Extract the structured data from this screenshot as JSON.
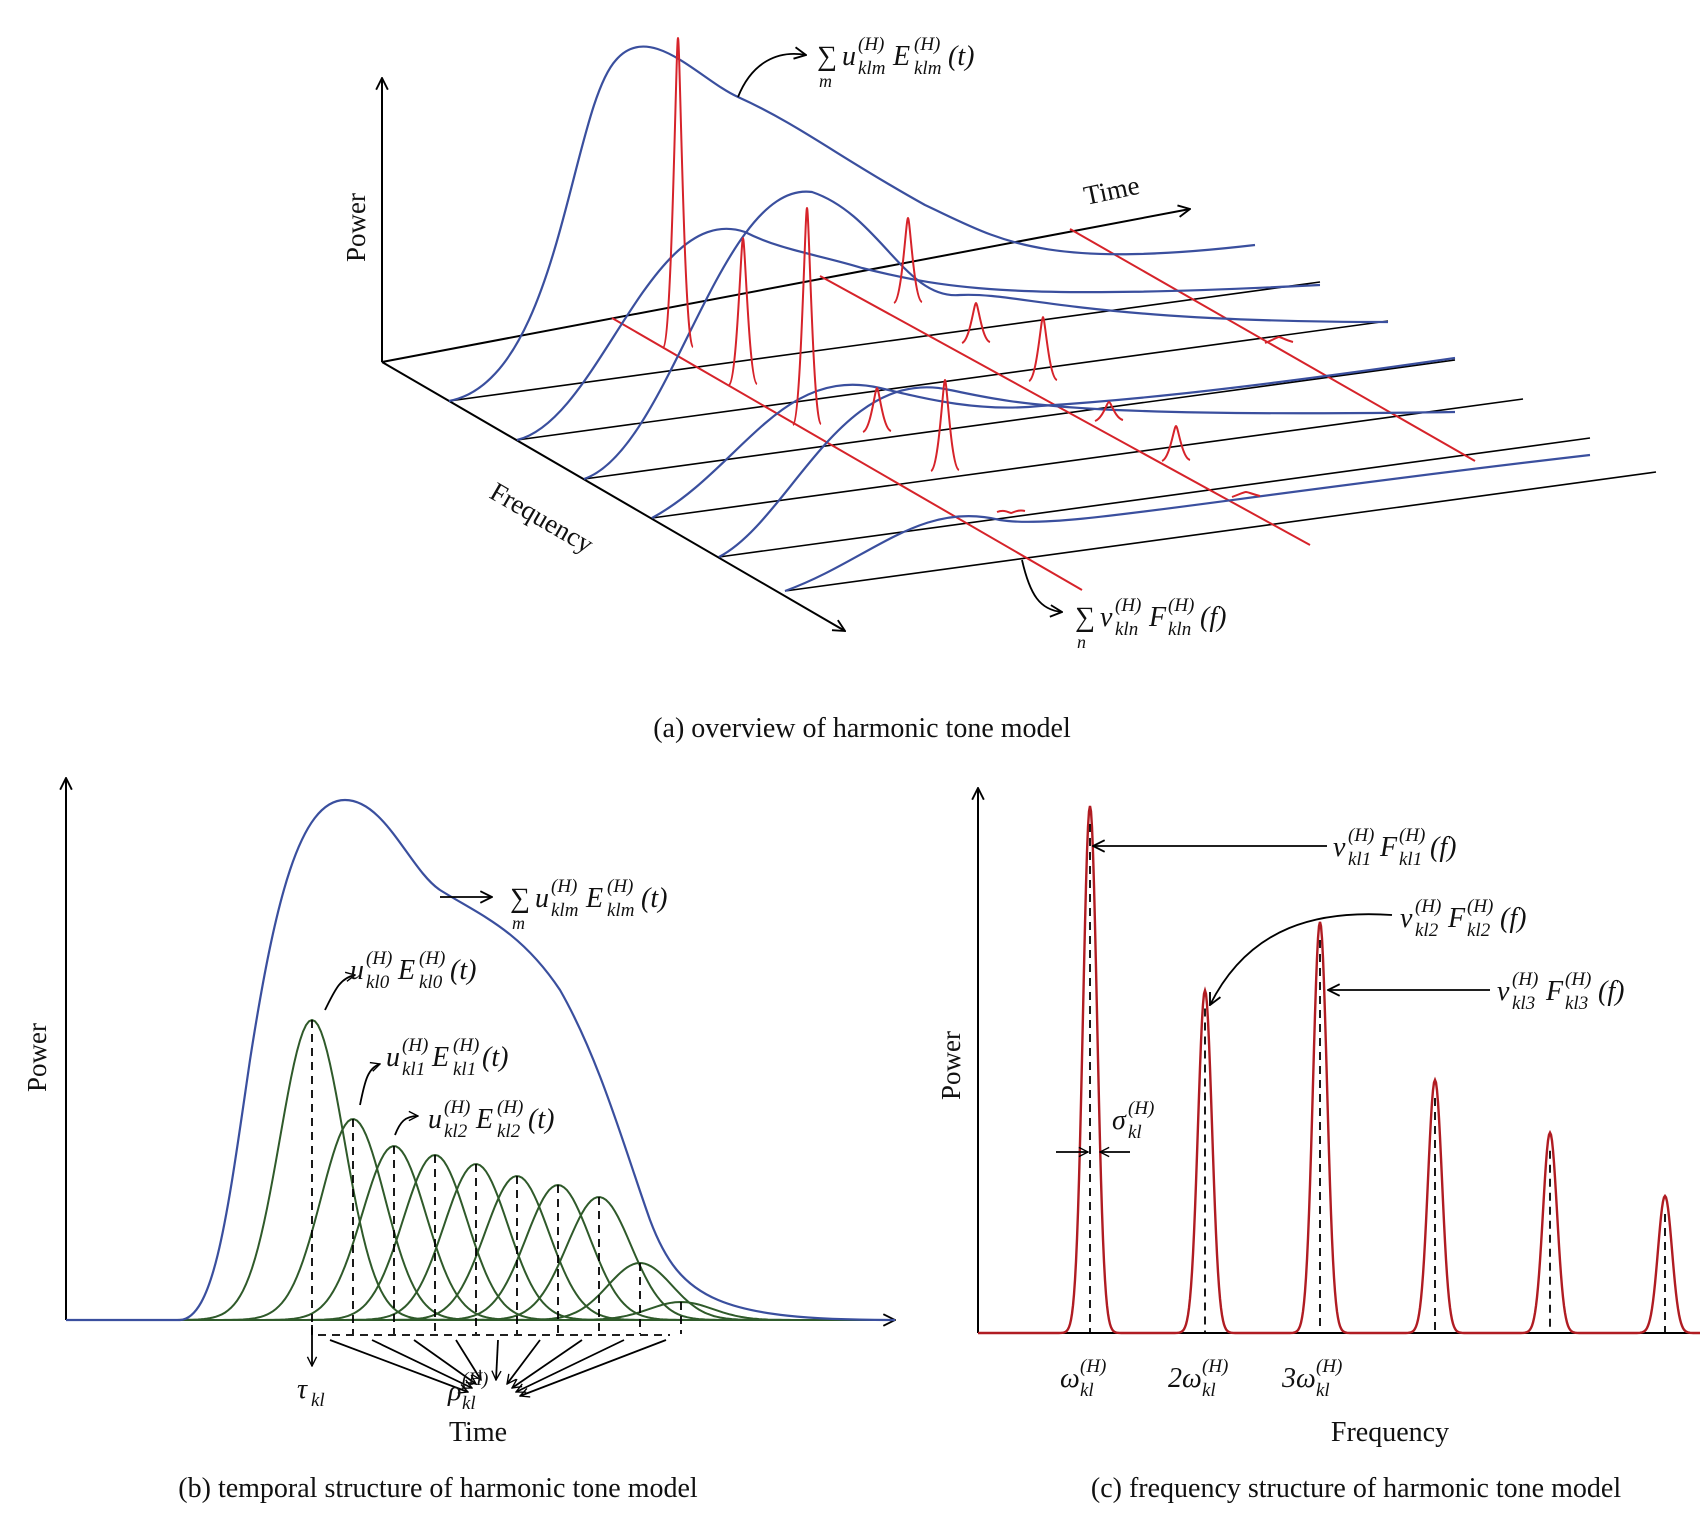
{
  "panel_a": {
    "caption": "(a)  overview of harmonic tone model",
    "axis_power": "Power",
    "axis_time": "Time",
    "axis_frequency": "Frequency",
    "label_temporal_sum": "∑m u(H)klm E(H)klm(t)",
    "label_spectral_sum": "∑n v(H)kln F(H)kln(f)"
  },
  "panel_b": {
    "caption": "(b)  temporal structure of harmonic tone model",
    "axis_power": "Power",
    "axis_time": "Time",
    "label_sum": "∑m u(H)klm E(H)klm(t)",
    "label_u0": "u(H)kl0 E(H)kl0(t)",
    "label_u1": "u(H)kl1 E(H)kl1(t)",
    "label_u2": "u(H)kl2 E(H)kl2(t)",
    "label_tau": "τkl",
    "label_rho": "ρ(H)kl",
    "gaussian_heights": [
      1.0,
      0.67,
      0.58,
      0.55,
      0.52,
      0.48,
      0.45,
      0.41,
      0.19,
      0.06
    ]
  },
  "panel_c": {
    "caption": "(c)  frequency structure of harmonic tone model",
    "axis_power": "Power",
    "axis_frequency": "Frequency",
    "label_v1": "v(H)kl1 F(H)kl1(f)",
    "label_v2": "v(H)kl2 F(H)kl2(f)",
    "label_v3": "v(H)kl3 F(H)kl3(f)",
    "label_sigma": "σ(H)kl",
    "tick_labels": [
      "ω(H)kl",
      "2ω(H)kl",
      "3ω(H)kl"
    ],
    "peak_heights": [
      1.0,
      0.65,
      0.78,
      0.48,
      0.38,
      0.26
    ]
  }
}
